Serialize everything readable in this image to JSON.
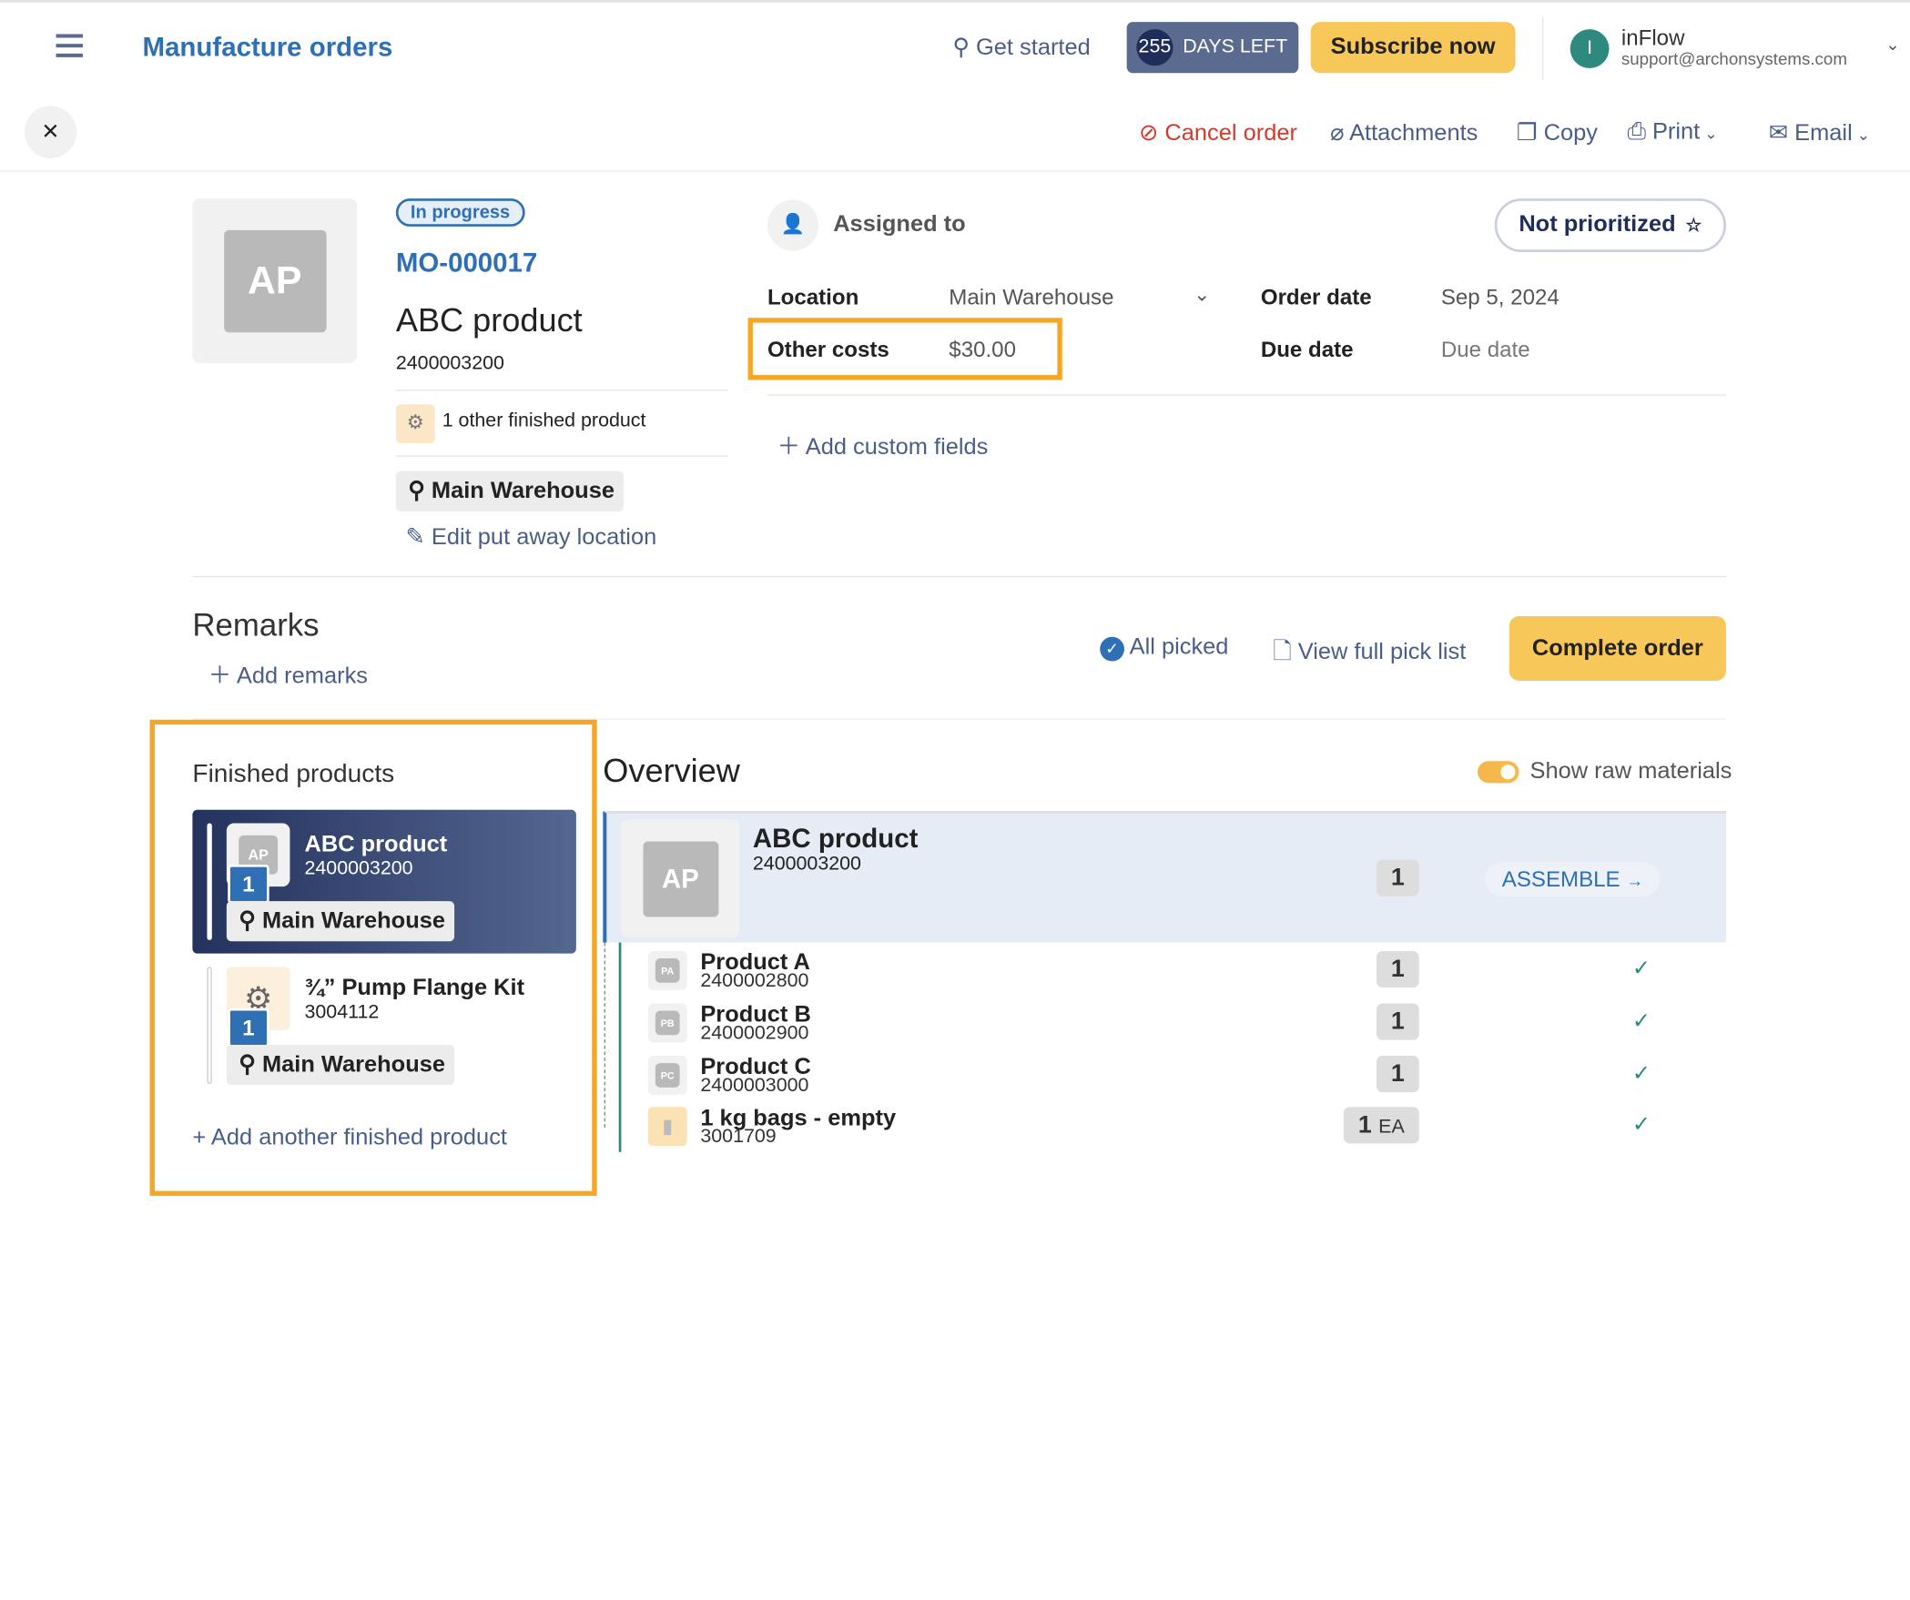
{
  "header": {
    "title": "Manufacture orders",
    "get_started": "Get started",
    "days_count": "255",
    "days_label": "DAYS LEFT",
    "subscribe": "Subscribe now",
    "avatar_initial": "I",
    "account_name": "inFlow",
    "account_email": "support@archonsystems.com"
  },
  "toolbar": {
    "cancel": "Cancel order",
    "attachments": "Attachments",
    "copy": "Copy",
    "print": "Print",
    "email": "Email"
  },
  "order": {
    "status": "In progress",
    "number": "MO-000017",
    "product_name": "ABC product",
    "product_sku": "2400003200",
    "thumb_initials": "AP",
    "other_products": "1 other finished product",
    "location_chip": "Main Warehouse",
    "edit_putaway": "Edit put away location",
    "assigned_to": "Assigned to",
    "priority": "Not prioritized",
    "fields": {
      "location_label": "Location",
      "location_value": "Main Warehouse",
      "other_costs_label": "Other costs",
      "other_costs_value": "$30.00",
      "order_date_label": "Order date",
      "order_date_value": "Sep 5, 2024",
      "due_date_label": "Due date",
      "due_date_placeholder": "Due date"
    },
    "add_custom_fields": "Add custom fields"
  },
  "remarks": {
    "title": "Remarks",
    "add": "Add remarks",
    "all_picked": "All picked",
    "view_pick_list": "View full pick list",
    "complete": "Complete order"
  },
  "finished": {
    "title": "Finished products",
    "items": [
      {
        "name": "ABC product",
        "sku": "2400003200",
        "qty": "1",
        "location": "Main Warehouse",
        "thumb": "AP"
      },
      {
        "name": "¾” Pump Flange Kit",
        "sku": "3004112",
        "qty": "1",
        "location": "Main Warehouse"
      }
    ],
    "add": "+ Add another finished product"
  },
  "overview": {
    "title": "Overview",
    "toggle_label": "Show raw materials",
    "toggle_on": true,
    "main": {
      "name": "ABC product",
      "sku": "2400003200",
      "qty": "1",
      "thumb": "AP",
      "action": "ASSEMBLE"
    },
    "rows": [
      {
        "name": "Product A",
        "sku": "2400002800",
        "qty": "1",
        "thumb": "PA",
        "uom": ""
      },
      {
        "name": "Product B",
        "sku": "2400002900",
        "qty": "1",
        "thumb": "PB",
        "uom": ""
      },
      {
        "name": "Product C",
        "sku": "2400003000",
        "qty": "1",
        "thumb": "PC",
        "uom": ""
      },
      {
        "name": "1 kg bags - empty",
        "sku": "3001709",
        "qty": "1",
        "thumb": "",
        "uom": "EA"
      }
    ]
  },
  "colors": {
    "accent": "#2f6fb3",
    "cta": "#f7c75a",
    "highlight": "#f5a623",
    "selected_card": "#2a3a66",
    "cancel": "#d33a2c"
  }
}
